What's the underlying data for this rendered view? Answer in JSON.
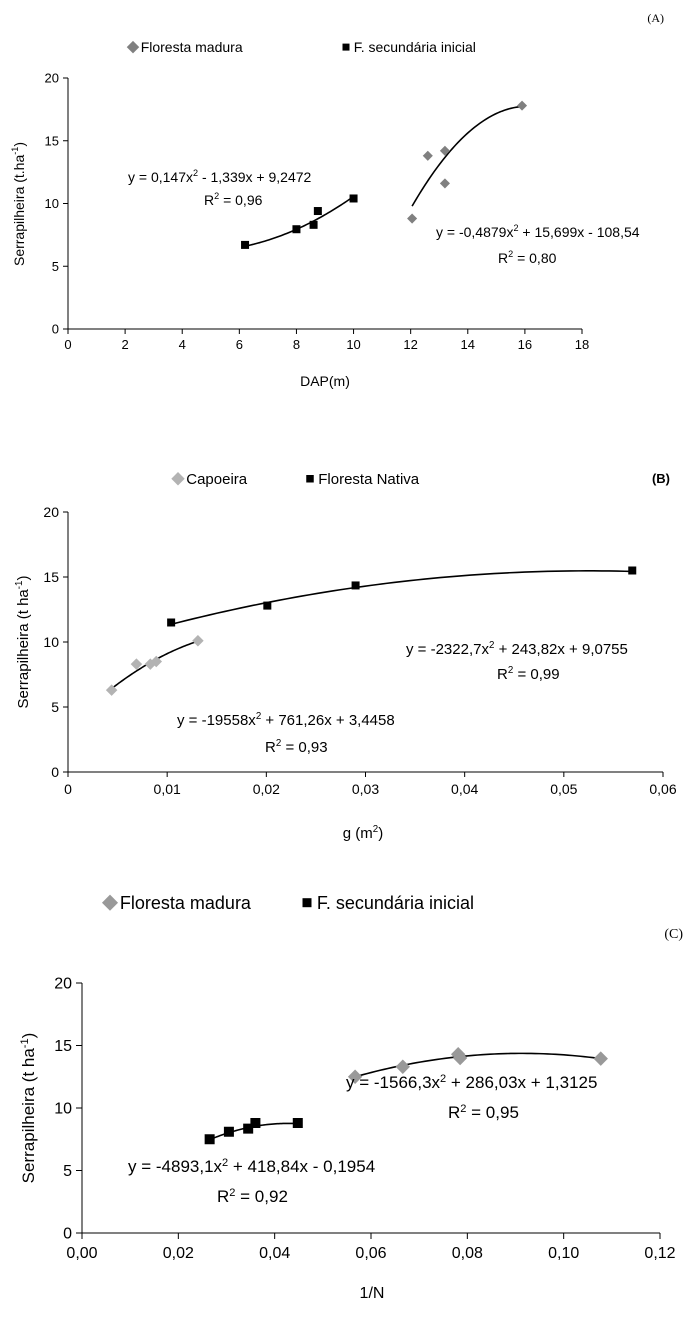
{
  "chart_data": [
    {
      "panel_label": "(A)",
      "type": "scatter",
      "xlabel": "DAP(m)",
      "ylabel_main": "Serrapilheira (t.ha",
      "ylabel_sup": "-1",
      "ylabel_end": ")",
      "xlim": [
        0,
        18
      ],
      "ylim": [
        0,
        20
      ],
      "xticks": [
        0,
        2,
        4,
        6,
        8,
        10,
        12,
        14,
        16,
        18
      ],
      "xtick_labels": [
        "0",
        "2",
        "4",
        "6",
        "8",
        "10",
        "12",
        "14",
        "16",
        "18"
      ],
      "yticks": [
        0,
        5,
        10,
        15,
        20
      ],
      "ytick_labels": [
        "0",
        "5",
        "10",
        "15",
        "20"
      ],
      "legend_position": "top",
      "series": [
        {
          "name": "Floresta madura",
          "marker": "diamond",
          "color": "#808080",
          "points": [
            [
              12.05,
              8.8
            ],
            [
              12.6,
              13.8
            ],
            [
              13.2,
              14.2
            ],
            [
              13.2,
              11.6
            ],
            [
              15.9,
              17.8
            ]
          ],
          "fit": {
            "a": -0.4879,
            "b": 15.699,
            "c": -108.54,
            "range": [
              12.05,
              15.9
            ]
          },
          "equation": {
            "pre": "y = -0,4879x",
            "sup": "2",
            "post": " + 15,699x - 108,54"
          },
          "r2": {
            "pre": "R",
            "sup": "2",
            "post": " = 0,80"
          }
        },
        {
          "name": "F. secundária inicial",
          "marker": "square",
          "color": "#000000",
          "points": [
            [
              6.2,
              6.7
            ],
            [
              8.0,
              7.95
            ],
            [
              8.6,
              8.3
            ],
            [
              8.75,
              9.4
            ],
            [
              10.0,
              10.4
            ]
          ],
          "fit": {
            "a": 0.147,
            "b": -1.339,
            "c": 9.2472,
            "range": [
              6.2,
              10.0
            ]
          },
          "equation": {
            "pre": "y = 0,147x",
            "sup": "2",
            "post": " - 1,339x + 9,2472"
          },
          "r2": {
            "pre": "R",
            "sup": "2",
            "post": " = 0,96"
          }
        }
      ]
    },
    {
      "panel_label": "(B)",
      "type": "scatter",
      "xlabel_main": "g (m",
      "xlabel_sup": "2",
      "xlabel_end": ")",
      "ylabel_main": "Serrapilheira  (t ha",
      "ylabel_sup": "-1",
      "ylabel_end": ")",
      "xlim": [
        0,
        0.06
      ],
      "ylim": [
        0,
        20
      ],
      "xticks": [
        0,
        0.01,
        0.02,
        0.03,
        0.04,
        0.05,
        0.06
      ],
      "xtick_labels": [
        "0",
        "0,01",
        "0,02",
        "0,03",
        "0,04",
        "0,05",
        "0,06"
      ],
      "yticks": [
        0,
        5,
        10,
        15,
        20
      ],
      "ytick_labels": [
        "0",
        "5",
        "10",
        "15",
        "20"
      ],
      "legend_position": "top",
      "series": [
        {
          "name": "Capoeira",
          "marker": "diamond",
          "color": "#b3b3b3",
          "points": [
            [
              0.0044,
              6.3
            ],
            [
              0.0069,
              8.3
            ],
            [
              0.0083,
              8.3
            ],
            [
              0.0089,
              8.5
            ],
            [
              0.0131,
              10.1
            ]
          ],
          "fit": {
            "a": -19558,
            "b": 761.26,
            "c": 3.4458,
            "range": [
              0.0044,
              0.0131
            ]
          },
          "equation": {
            "pre": "y = -19558x",
            "sup": "2",
            "post": " + 761,26x + 3,4458"
          },
          "r2": {
            "pre": "R",
            "sup": "2",
            "post": " = 0,93"
          }
        },
        {
          "name": "Floresta Nativa",
          "marker": "square",
          "color": "#000000",
          "points": [
            [
              0.0104,
              11.5
            ],
            [
              0.0201,
              12.8
            ],
            [
              0.029,
              14.35
            ],
            [
              0.0569,
              15.5
            ]
          ],
          "fit": {
            "a": -2322.7,
            "b": 243.82,
            "c": 9.0755,
            "range": [
              0.0104,
              0.0569
            ]
          },
          "equation": {
            "pre": "y = -2322,7x",
            "sup": "2",
            "post": " + 243,82x + 9,0755"
          },
          "r2": {
            "pre": "R",
            "sup": "2",
            "post": " = 0,99"
          }
        }
      ]
    },
    {
      "panel_label": "(C)",
      "type": "scatter",
      "xlabel": "1/N",
      "ylabel_main": "Serrapilheira  (t ha",
      "ylabel_sup": "-1",
      "ylabel_end": ")",
      "xlim": [
        0,
        0.12
      ],
      "ylim": [
        0,
        20
      ],
      "xticks": [
        0,
        0.02,
        0.04,
        0.06,
        0.08,
        0.1,
        0.12
      ],
      "xtick_labels": [
        "0,00",
        "0,02",
        "0,04",
        "0,06",
        "0,08",
        "0,10",
        "0,12"
      ],
      "yticks": [
        0,
        5,
        10,
        15,
        20
      ],
      "ytick_labels": [
        "0",
        "5",
        "10",
        "15",
        "20"
      ],
      "legend_position": "top",
      "series": [
        {
          "name": "Floresta madura",
          "marker": "diamond",
          "color": "#999999",
          "points": [
            [
              0.0567,
              12.5
            ],
            [
              0.0666,
              13.3
            ],
            [
              0.0781,
              14.3
            ],
            [
              0.0785,
              14.0
            ],
            [
              0.1077,
              13.95
            ]
          ],
          "fit": {
            "a": -1566.3,
            "b": 286.03,
            "c": 1.3125,
            "range": [
              0.0567,
              0.1077
            ]
          },
          "equation": {
            "pre": "y = -1566,3x",
            "sup": "2",
            "post": " + 286,03x + 1,3125"
          },
          "r2": {
            "pre": "R",
            "sup": "2",
            "post": " = 0,95"
          }
        },
        {
          "name": "F. secundária inicial",
          "marker": "square",
          "color": "#000000",
          "points": [
            [
              0.0265,
              7.5
            ],
            [
              0.0305,
              8.1
            ],
            [
              0.0345,
              8.35
            ],
            [
              0.036,
              8.8
            ],
            [
              0.0448,
              8.8
            ]
          ],
          "fit": {
            "a": -4893.1,
            "b": 418.84,
            "c": -0.1954,
            "range": [
              0.0265,
              0.0448
            ]
          },
          "equation": {
            "pre": "y = -4893,1x",
            "sup": "2",
            "post": " + 418,84x - 0,1954"
          },
          "r2": {
            "pre": "R",
            "sup": "2",
            "post": " = 0,92"
          }
        }
      ]
    }
  ]
}
